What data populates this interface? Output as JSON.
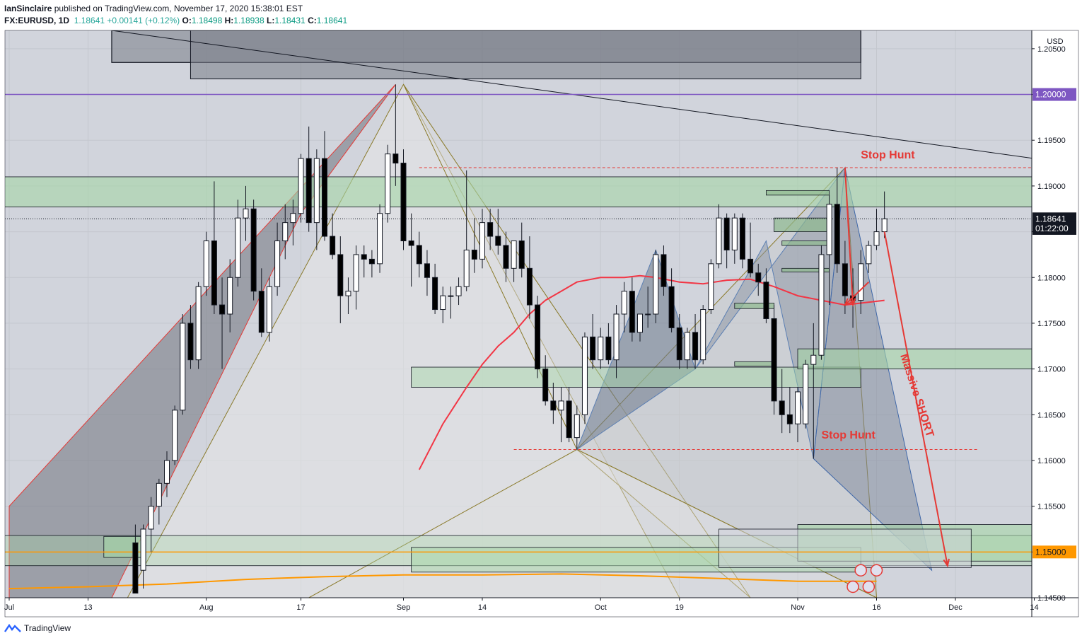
{
  "header": {
    "author": "IanSinclaire",
    "published": "published on TradingView.com, November 17, 2020 15:38:01 EST",
    "symbol": "FX:EURUSD, 1D",
    "last": "1.18641",
    "change": "+0.00141 (+0.12%)",
    "o_label": "O:",
    "o_value": "1.18498",
    "h_label": "H:",
    "h_value": "1.18938",
    "l_label": "L:",
    "l_value": "1.18431",
    "c_label": "C:",
    "c_value": "1.18641"
  },
  "footer": {
    "brand": "TradingView"
  },
  "colors": {
    "up_body": "#ffffff",
    "down_body": "#000000",
    "ema_fast": "#f23645",
    "ema_slow": "#ff9800",
    "level_purple": "#7e57c2",
    "annotation_red": "#e53935",
    "zone_green": "#a5d6a7",
    "zone_gray": "#787b86"
  },
  "chart_data": {
    "type": "candlestick",
    "currency": "USD",
    "ylim": [
      1.145,
      1.207
    ],
    "y_ticks": [
      "1.20500",
      "1.20000",
      "1.19500",
      "1.19000",
      "1.18500",
      "1.18000",
      "1.17500",
      "1.17000",
      "1.16500",
      "1.16000",
      "1.15500",
      "1.15000",
      "1.14500"
    ],
    "x_ticks": [
      "Jul",
      "13",
      "Aug",
      "17",
      "Sep",
      "14",
      "Oct",
      "19",
      "Nov",
      "16",
      "Dec",
      "14"
    ],
    "x_tick_bars": [
      0,
      10,
      25,
      37,
      50,
      60,
      75,
      85,
      100,
      110,
      120,
      130
    ],
    "price_labels": [
      {
        "text": "1.20000",
        "value": 1.2,
        "style": "purple"
      },
      {
        "text": "1.18641",
        "value": 1.18641,
        "style": "dark"
      },
      {
        "text": "01:22:00",
        "value": 1.18536,
        "style": "dark"
      },
      {
        "text": "1.15000",
        "value": 1.15,
        "style": "orange"
      }
    ],
    "annotations": [
      {
        "text": "Stop Hunt",
        "bar": 108,
        "value": 1.193
      },
      {
        "text": "Stop Hunt",
        "bar": 103,
        "value": 1.1624
      },
      {
        "text": "Massive SHORT",
        "bar": 113,
        "value": 1.1715
      }
    ],
    "candles": [
      {
        "i": 16,
        "o": 1.151,
        "h": 1.153,
        "l": 1.1455,
        "c": 1.1455
      },
      {
        "i": 17,
        "o": 1.148,
        "h": 1.153,
        "l": 1.146,
        "c": 1.1525
      },
      {
        "i": 18,
        "o": 1.1525,
        "h": 1.156,
        "l": 1.15,
        "c": 1.155
      },
      {
        "i": 19,
        "o": 1.155,
        "h": 1.158,
        "l": 1.153,
        "c": 1.1575
      },
      {
        "i": 20,
        "o": 1.1575,
        "h": 1.161,
        "l": 1.156,
        "c": 1.16
      },
      {
        "i": 21,
        "o": 1.16,
        "h": 1.166,
        "l": 1.1595,
        "c": 1.1655
      },
      {
        "i": 22,
        "o": 1.1655,
        "h": 1.176,
        "l": 1.165,
        "c": 1.175
      },
      {
        "i": 23,
        "o": 1.175,
        "h": 1.177,
        "l": 1.17,
        "c": 1.171
      },
      {
        "i": 24,
        "o": 1.171,
        "h": 1.1795,
        "l": 1.17,
        "c": 1.179
      },
      {
        "i": 25,
        "o": 1.179,
        "h": 1.185,
        "l": 1.178,
        "c": 1.184
      },
      {
        "i": 26,
        "o": 1.184,
        "h": 1.1905,
        "l": 1.176,
        "c": 1.177
      },
      {
        "i": 27,
        "o": 1.177,
        "h": 1.18,
        "l": 1.17,
        "c": 1.176
      },
      {
        "i": 28,
        "o": 1.176,
        "h": 1.182,
        "l": 1.174,
        "c": 1.18
      },
      {
        "i": 29,
        "o": 1.18,
        "h": 1.1885,
        "l": 1.179,
        "c": 1.1865
      },
      {
        "i": 30,
        "o": 1.1865,
        "h": 1.19,
        "l": 1.184,
        "c": 1.1875
      },
      {
        "i": 31,
        "o": 1.1875,
        "h": 1.1885,
        "l": 1.1775,
        "c": 1.1785
      },
      {
        "i": 32,
        "o": 1.1785,
        "h": 1.181,
        "l": 1.1735,
        "c": 1.174
      },
      {
        "i": 33,
        "o": 1.174,
        "h": 1.18,
        "l": 1.173,
        "c": 1.179
      },
      {
        "i": 34,
        "o": 1.179,
        "h": 1.186,
        "l": 1.178,
        "c": 1.184
      },
      {
        "i": 35,
        "o": 1.184,
        "h": 1.188,
        "l": 1.182,
        "c": 1.186
      },
      {
        "i": 36,
        "o": 1.186,
        "h": 1.1885,
        "l": 1.1835,
        "c": 1.187
      },
      {
        "i": 37,
        "o": 1.187,
        "h": 1.1935,
        "l": 1.186,
        "c": 1.193
      },
      {
        "i": 38,
        "o": 1.193,
        "h": 1.1965,
        "l": 1.185,
        "c": 1.186
      },
      {
        "i": 39,
        "o": 1.186,
        "h": 1.194,
        "l": 1.183,
        "c": 1.193
      },
      {
        "i": 40,
        "o": 1.193,
        "h": 1.196,
        "l": 1.184,
        "c": 1.1845
      },
      {
        "i": 41,
        "o": 1.1845,
        "h": 1.187,
        "l": 1.182,
        "c": 1.1825
      },
      {
        "i": 42,
        "o": 1.1825,
        "h": 1.1845,
        "l": 1.175,
        "c": 1.178
      },
      {
        "i": 43,
        "o": 1.178,
        "h": 1.18,
        "l": 1.176,
        "c": 1.1785
      },
      {
        "i": 44,
        "o": 1.1785,
        "h": 1.1835,
        "l": 1.1765,
        "c": 1.1825
      },
      {
        "i": 45,
        "o": 1.1825,
        "h": 1.1835,
        "l": 1.18,
        "c": 1.182
      },
      {
        "i": 46,
        "o": 1.182,
        "h": 1.183,
        "l": 1.18,
        "c": 1.1815
      },
      {
        "i": 47,
        "o": 1.1815,
        "h": 1.188,
        "l": 1.1805,
        "c": 1.187
      },
      {
        "i": 48,
        "o": 1.187,
        "h": 1.1945,
        "l": 1.186,
        "c": 1.1935
      },
      {
        "i": 49,
        "o": 1.1935,
        "h": 1.2011,
        "l": 1.19,
        "c": 1.1925
      },
      {
        "i": 50,
        "o": 1.1925,
        "h": 1.194,
        "l": 1.183,
        "c": 1.184
      },
      {
        "i": 51,
        "o": 1.184,
        "h": 1.187,
        "l": 1.179,
        "c": 1.1835
      },
      {
        "i": 52,
        "o": 1.1835,
        "h": 1.185,
        "l": 1.18,
        "c": 1.1815
      },
      {
        "i": 53,
        "o": 1.1815,
        "h": 1.183,
        "l": 1.178,
        "c": 1.18
      },
      {
        "i": 54,
        "o": 1.18,
        "h": 1.1815,
        "l": 1.176,
        "c": 1.1765
      },
      {
        "i": 55,
        "o": 1.1765,
        "h": 1.179,
        "l": 1.175,
        "c": 1.178
      },
      {
        "i": 56,
        "o": 1.178,
        "h": 1.179,
        "l": 1.1755,
        "c": 1.178
      },
      {
        "i": 57,
        "o": 1.178,
        "h": 1.18,
        "l": 1.177,
        "c": 1.179
      },
      {
        "i": 58,
        "o": 1.179,
        "h": 1.1917,
        "l": 1.1785,
        "c": 1.183
      },
      {
        "i": 59,
        "o": 1.183,
        "h": 1.1865,
        "l": 1.1805,
        "c": 1.182
      },
      {
        "i": 60,
        "o": 1.182,
        "h": 1.1875,
        "l": 1.181,
        "c": 1.186
      },
      {
        "i": 61,
        "o": 1.186,
        "h": 1.1875,
        "l": 1.183,
        "c": 1.1845
      },
      {
        "i": 62,
        "o": 1.1845,
        "h": 1.1875,
        "l": 1.1825,
        "c": 1.1835
      },
      {
        "i": 63,
        "o": 1.1835,
        "h": 1.185,
        "l": 1.1795,
        "c": 1.181
      },
      {
        "i": 64,
        "o": 1.181,
        "h": 1.184,
        "l": 1.1795,
        "c": 1.184
      },
      {
        "i": 65,
        "o": 1.184,
        "h": 1.186,
        "l": 1.18,
        "c": 1.181
      },
      {
        "i": 66,
        "o": 1.181,
        "h": 1.1845,
        "l": 1.1755,
        "c": 1.177
      },
      {
        "i": 67,
        "o": 1.177,
        "h": 1.178,
        "l": 1.169,
        "c": 1.17
      },
      {
        "i": 68,
        "o": 1.17,
        "h": 1.1715,
        "l": 1.166,
        "c": 1.1665
      },
      {
        "i": 69,
        "o": 1.1665,
        "h": 1.1685,
        "l": 1.164,
        "c": 1.1655
      },
      {
        "i": 70,
        "o": 1.1655,
        "h": 1.168,
        "l": 1.162,
        "c": 1.1665
      },
      {
        "i": 71,
        "o": 1.1665,
        "h": 1.168,
        "l": 1.162,
        "c": 1.1625
      },
      {
        "i": 72,
        "o": 1.1625,
        "h": 1.166,
        "l": 1.1612,
        "c": 1.165
      },
      {
        "i": 73,
        "o": 1.165,
        "h": 1.174,
        "l": 1.164,
        "c": 1.1735
      },
      {
        "i": 74,
        "o": 1.1735,
        "h": 1.176,
        "l": 1.17,
        "c": 1.171
      },
      {
        "i": 75,
        "o": 1.171,
        "h": 1.1745,
        "l": 1.17,
        "c": 1.1735
      },
      {
        "i": 76,
        "o": 1.1735,
        "h": 1.175,
        "l": 1.1705,
        "c": 1.171
      },
      {
        "i": 77,
        "o": 1.171,
        "h": 1.177,
        "l": 1.169,
        "c": 1.176
      },
      {
        "i": 78,
        "o": 1.176,
        "h": 1.1795,
        "l": 1.174,
        "c": 1.1785
      },
      {
        "i": 79,
        "o": 1.1785,
        "h": 1.18,
        "l": 1.173,
        "c": 1.174
      },
      {
        "i": 80,
        "o": 1.174,
        "h": 1.176,
        "l": 1.173,
        "c": 1.176
      },
      {
        "i": 81,
        "o": 1.176,
        "h": 1.179,
        "l": 1.1745,
        "c": 1.176
      },
      {
        "i": 82,
        "o": 1.176,
        "h": 1.183,
        "l": 1.175,
        "c": 1.1825
      },
      {
        "i": 83,
        "o": 1.1825,
        "h": 1.1835,
        "l": 1.178,
        "c": 1.179
      },
      {
        "i": 84,
        "o": 1.179,
        "h": 1.181,
        "l": 1.174,
        "c": 1.1745
      },
      {
        "i": 85,
        "o": 1.1745,
        "h": 1.176,
        "l": 1.17,
        "c": 1.171
      },
      {
        "i": 86,
        "o": 1.171,
        "h": 1.1745,
        "l": 1.17,
        "c": 1.174
      },
      {
        "i": 87,
        "o": 1.174,
        "h": 1.176,
        "l": 1.17,
        "c": 1.171
      },
      {
        "i": 88,
        "o": 1.171,
        "h": 1.177,
        "l": 1.1705,
        "c": 1.1765
      },
      {
        "i": 89,
        "o": 1.1765,
        "h": 1.182,
        "l": 1.176,
        "c": 1.1815
      },
      {
        "i": 90,
        "o": 1.1815,
        "h": 1.188,
        "l": 1.181,
        "c": 1.1865
      },
      {
        "i": 91,
        "o": 1.1865,
        "h": 1.187,
        "l": 1.181,
        "c": 1.183
      },
      {
        "i": 92,
        "o": 1.183,
        "h": 1.187,
        "l": 1.1815,
        "c": 1.1865
      },
      {
        "i": 93,
        "o": 1.1865,
        "h": 1.187,
        "l": 1.181,
        "c": 1.182
      },
      {
        "i": 94,
        "o": 1.182,
        "h": 1.186,
        "l": 1.18,
        "c": 1.1805
      },
      {
        "i": 95,
        "o": 1.1805,
        "h": 1.1815,
        "l": 1.178,
        "c": 1.1795
      },
      {
        "i": 96,
        "o": 1.1795,
        "h": 1.181,
        "l": 1.175,
        "c": 1.1755
      },
      {
        "i": 97,
        "o": 1.1755,
        "h": 1.177,
        "l": 1.165,
        "c": 1.1665
      },
      {
        "i": 98,
        "o": 1.1665,
        "h": 1.17,
        "l": 1.163,
        "c": 1.165
      },
      {
        "i": 99,
        "o": 1.165,
        "h": 1.168,
        "l": 1.163,
        "c": 1.164
      },
      {
        "i": 100,
        "o": 1.164,
        "h": 1.168,
        "l": 1.162,
        "c": 1.1675
      },
      {
        "i": 101,
        "o": 1.164,
        "h": 1.171,
        "l": 1.1635,
        "c": 1.1705
      },
      {
        "i": 102,
        "o": 1.1705,
        "h": 1.175,
        "l": 1.1602,
        "c": 1.1715
      },
      {
        "i": 103,
        "o": 1.1715,
        "h": 1.1835,
        "l": 1.171,
        "c": 1.1825
      },
      {
        "i": 104,
        "o": 1.1825,
        "h": 1.189,
        "l": 1.177,
        "c": 1.188
      },
      {
        "i": 105,
        "o": 1.188,
        "h": 1.192,
        "l": 1.1805,
        "c": 1.1815
      },
      {
        "i": 106,
        "o": 1.1815,
        "h": 1.184,
        "l": 1.176,
        "c": 1.178
      },
      {
        "i": 107,
        "o": 1.178,
        "h": 1.181,
        "l": 1.1745,
        "c": 1.1775
      },
      {
        "i": 108,
        "o": 1.1775,
        "h": 1.183,
        "l": 1.176,
        "c": 1.1815
      },
      {
        "i": 109,
        "o": 1.1815,
        "h": 1.184,
        "l": 1.1805,
        "c": 1.1835
      },
      {
        "i": 110,
        "o": 1.1835,
        "h": 1.1875,
        "l": 1.183,
        "c": 1.185
      },
      {
        "i": 111,
        "o": 1.185,
        "h": 1.1894,
        "l": 1.1843,
        "c": 1.1864
      }
    ],
    "ema_fast": [
      [
        52,
        1.159
      ],
      [
        55,
        1.164
      ],
      [
        58,
        1.168
      ],
      [
        60,
        1.1705
      ],
      [
        62,
        1.1725
      ],
      [
        64,
        1.174
      ],
      [
        66,
        1.176
      ],
      [
        68,
        1.1775
      ],
      [
        70,
        1.1785
      ],
      [
        72,
        1.1795
      ],
      [
        75,
        1.18
      ],
      [
        78,
        1.18
      ],
      [
        80,
        1.1802
      ],
      [
        82,
        1.18
      ],
      [
        85,
        1.1795
      ],
      [
        88,
        1.1793
      ],
      [
        91,
        1.1797
      ],
      [
        94,
        1.1798
      ],
      [
        97,
        1.179
      ],
      [
        100,
        1.178
      ],
      [
        103,
        1.1775
      ],
      [
        106,
        1.177
      ],
      [
        108,
        1.1772
      ],
      [
        111,
        1.1775
      ]
    ],
    "ema_slow": [
      [
        0,
        1.146
      ],
      [
        10,
        1.1462
      ],
      [
        20,
        1.1465
      ],
      [
        30,
        1.147
      ],
      [
        40,
        1.1473
      ],
      [
        50,
        1.1475
      ],
      [
        60,
        1.1475
      ],
      [
        70,
        1.1476
      ],
      [
        80,
        1.1474
      ],
      [
        90,
        1.1471
      ],
      [
        100,
        1.1468
      ],
      [
        110,
        1.1468
      ]
    ],
    "levels": [
      1.2,
      1.15
    ]
  }
}
